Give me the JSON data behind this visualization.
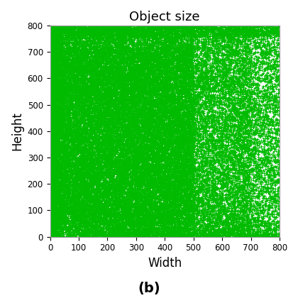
{
  "title": "Object size",
  "xlabel": "Width",
  "ylabel": "Height",
  "subtitle": "(b)",
  "marker": "+",
  "marker_color": "#00bb00",
  "marker_size": 3.0,
  "marker_linewidth": 0.6,
  "xlim": [
    0,
    800
  ],
  "ylim": [
    0,
    800
  ],
  "xticks": [
    0,
    100,
    200,
    300,
    400,
    500,
    600,
    700,
    800
  ],
  "yticks": [
    0,
    100,
    200,
    300,
    400,
    500,
    600,
    700,
    800
  ],
  "grid_color": "#cccccc",
  "background_color": "#ffffff",
  "n_dense": 40000,
  "n_sparse": 8000,
  "n_tiny": 5000,
  "seed": 42,
  "title_fontsize": 13,
  "label_fontsize": 12,
  "subtitle_fontsize": 14
}
